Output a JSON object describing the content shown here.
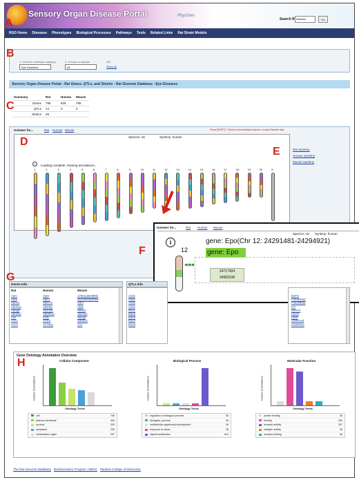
{
  "header": {
    "title": "Sensory Organ Disease Portal",
    "brand": "PhysGen",
    "search_label": "Search RGD",
    "search_value": "Disease",
    "go_label": "Go"
  },
  "nav": [
    "RGD Home",
    "Diseases",
    "Phenotypes",
    "Biological Processes",
    "Pathways",
    "Tools",
    "Related Links",
    "Rat Strain Models"
  ],
  "panel_letters": {
    "a": "A",
    "b": "B",
    "c": "C",
    "d": "D",
    "e": "E",
    "f": "F",
    "g": "G",
    "h": "H"
  },
  "selector": {
    "step1": "1. Choose a disease category",
    "step1_value": "Eye Diseases",
    "step2": "2. Choose a disease",
    "step2_value": "All",
    "or_label": "OR",
    "show_all": "Show all"
  },
  "section_title": "Sensory Organ Disease Portal - Rat Genes, QTLs, and Strains - Rat Genome Database : Eye Diseases",
  "summary": {
    "heading": "Summary",
    "columns": [
      "Rat",
      "Human",
      "Mouse"
    ],
    "rows": [
      {
        "label": "Genes",
        "rat": "799",
        "human": "829",
        "mouse": "795"
      },
      {
        "label": "QTLs",
        "rat": "14",
        "human": "0",
        "mouse": "0"
      },
      {
        "label": "Strains",
        "rat": "29",
        "human": "",
        "mouse": ""
      }
    ]
  },
  "gviewer": {
    "label": "Gviewer for...",
    "tabs": [
      "Rat",
      "Human",
      "Mouse"
    ],
    "hint": "Press [SHIFT] + Click to view individual reports, or read Gviewer help",
    "species": "Species: rat",
    "synteny": "Synteny: human",
    "loading": "Loading complete, Parsing annotations...",
    "chromosomes": [
      "1",
      "2",
      "3",
      "4",
      "5",
      "6",
      "7",
      "8",
      "9",
      "10",
      "11",
      "12",
      "13",
      "14",
      "15",
      "16",
      "17",
      "18",
      "19",
      "20",
      "X"
    ],
    "synteny_links": [
      "Rat Synteny",
      "Human Synteny",
      "Mouse Synteny"
    ]
  },
  "zoom": {
    "label": "Gviewer for...",
    "tabs": [
      "Rat",
      "Human",
      "Mouse"
    ],
    "species": "Species: rat",
    "synteny": "Synteny: human",
    "chrom": "12",
    "gene_full": "gene: Epo(Chr 12: 24291481-24294921)",
    "gene_short": "gene: Epo",
    "pos1": "24717494",
    "pos2": "34981538"
  },
  "genes_info": {
    "title": "Genes Info",
    "columns": [
      "Rat",
      "Human",
      "Mouse"
    ],
    "rat": [
      "A2m",
      "Abat",
      "Abca4",
      "Abcb1a",
      "Abcg5",
      "Abhd12",
      "Ace",
      "Ace2",
      "Acn2"
    ],
    "human": [
      "A2M",
      "ABAT",
      "ABCA4",
      "ABCB1",
      "ABCG5",
      "ABHD12",
      "ACE",
      "ACE2",
      "ACHM1"
    ],
    "mouse": [
      "1700110E08Rik",
      "2610301B20Rik",
      "A2m",
      "Abat",
      "Abca4",
      "Abcb1a",
      "Abcg5",
      "Abhd12",
      "Ace"
    ]
  },
  "qtls_info": {
    "title": "QTLs Info",
    "rat": [
      "Aml1",
      "Aml2",
      "Aml3",
      "Aml4",
      "Eau1",
      "Eau2",
      "Eau3",
      "Eau4",
      "Eau5"
    ],
    "right": [
      "B2FN",
      "F344NHsd",
      "F344NRsd",
      "FH",
      "ICR/Hr",
      "LE/Hr",
      "LEW",
      "LEW/Hsd",
      "LEW/SsN"
    ]
  },
  "go_overview": {
    "title": "Gene Ontology Annotation Overview",
    "charts": [
      {
        "title": "Cellular Component",
        "ylabel": "Number of annotations",
        "xlabel": "Ontology Terms",
        "legend": [
          {
            "name": "cell",
            "value": "746"
          },
          {
            "name": "plasma membrane",
            "value": "463"
          },
          {
            "name": "nucleus",
            "value": "333"
          },
          {
            "name": "cytoplasm",
            "value": "299"
          },
          {
            "name": "extracellular region",
            "value": "257"
          }
        ]
      },
      {
        "title": "Biological Process",
        "ylabel": "Number of annotations",
        "xlabel": "Ontology Terms",
        "legend": [
          {
            "name": "regulation of biological process",
            "value": "36"
          },
          {
            "name": "biological_process",
            "value": "36"
          },
          {
            "name": "multicellular organismal development",
            "value": "36"
          },
          {
            "name": "response to stress",
            "value": "36"
          },
          {
            "name": "signal transduction",
            "value": "614"
          }
        ]
      },
      {
        "title": "Molecular Function",
        "ylabel": "Number of annotations",
        "xlabel": "Ontology Terms",
        "legend": [
          {
            "name": "protein binding",
            "value": "36"
          },
          {
            "name": "binding",
            "value": "326"
          },
          {
            "name": "receptor activity",
            "value": "297"
          },
          {
            "name": "catalytic activity",
            "value": "36"
          },
          {
            "name": "receptor binding",
            "value": "36"
          }
        ]
      }
    ]
  },
  "footer": [
    "The Rat Genome Database",
    "Bioinformatics Program, HMGC",
    "Medical College of Wisconsin"
  ],
  "colors": {
    "nav": "#2c3e71",
    "panel_bg": "#eef3f8",
    "highlight": "#b6d9f2",
    "letter": "#d62316",
    "gene_highlight": "#7ed03a"
  }
}
